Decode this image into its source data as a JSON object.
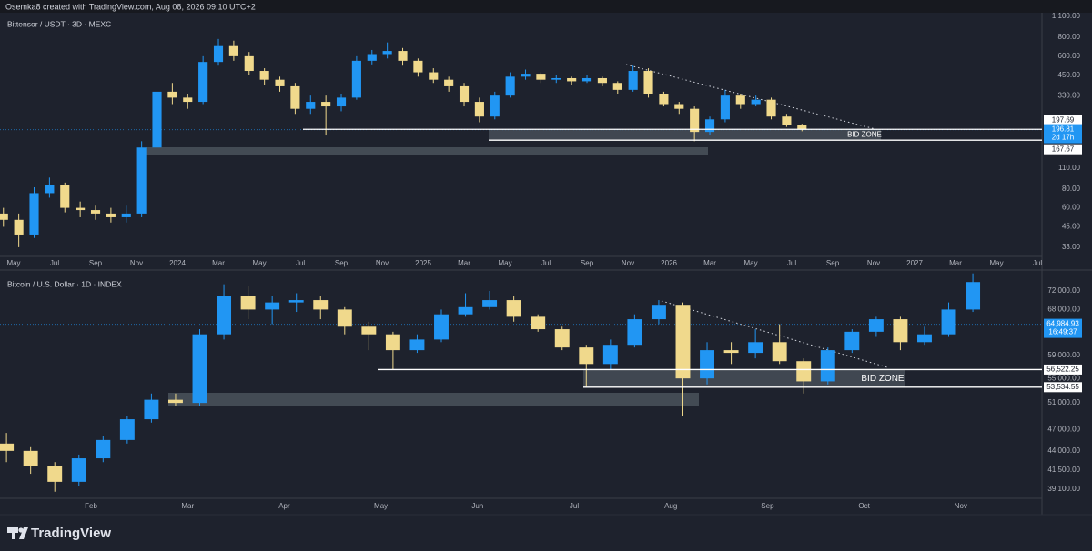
{
  "header": "Osemka8 created with TradingView.com, Aug 08, 2026 09:10 UTC+2",
  "footer": "TradingView",
  "chart_data": [
    {
      "type": "candlestick",
      "title": "Bittensor / USDT · 3D · MEXC",
      "log_y": true,
      "up_color": "#2196f3",
      "down_color": "#f0d98c",
      "xlim": [
        -0.667,
        50.22
      ],
      "ylim": [
        28.7,
        1162
      ],
      "xticks": [
        {
          "value": 0,
          "label": "May"
        },
        {
          "value": 2,
          "label": "Jul"
        },
        {
          "value": 4,
          "label": "Sep"
        },
        {
          "value": 6,
          "label": "Nov"
        },
        {
          "value": 8,
          "label": "2024"
        },
        {
          "value": 10,
          "label": "Mar"
        },
        {
          "value": 12,
          "label": "May"
        },
        {
          "value": 14,
          "label": "Jul"
        },
        {
          "value": 16,
          "label": "Sep"
        },
        {
          "value": 18,
          "label": "Nov"
        },
        {
          "value": 20,
          "label": "2025"
        },
        {
          "value": 22,
          "label": "Mar"
        },
        {
          "value": 24,
          "label": "May"
        },
        {
          "value": 26,
          "label": "Jul"
        },
        {
          "value": 28,
          "label": "Sep"
        },
        {
          "value": 30,
          "label": "Nov"
        },
        {
          "value": 32,
          "label": "2026"
        },
        {
          "value": 34,
          "label": "Mar"
        },
        {
          "value": 36,
          "label": "May"
        },
        {
          "value": 38,
          "label": "Jul"
        },
        {
          "value": 40,
          "label": "Sep"
        },
        {
          "value": 42,
          "label": "Nov"
        },
        {
          "value": 44,
          "label": "2027"
        },
        {
          "value": 46,
          "label": "Mar"
        },
        {
          "value": 48,
          "label": "May"
        },
        {
          "value": 50,
          "label": "Jul"
        }
      ],
      "yticks": [
        {
          "value": 33,
          "label": "33.00"
        },
        {
          "value": 45,
          "label": "45.00"
        },
        {
          "value": 60,
          "label": "60.00"
        },
        {
          "value": 80,
          "label": "80.00"
        },
        {
          "value": 110,
          "label": "110.00"
        },
        {
          "value": 330,
          "label": "330.00"
        },
        {
          "value": 450,
          "label": "450.00"
        },
        {
          "value": 600,
          "label": "600.00"
        },
        {
          "value": 800,
          "label": "800.00"
        },
        {
          "value": 1100,
          "label": "1,100.00"
        }
      ],
      "levels": [
        {
          "value": 197.69,
          "label": "197.69"
        },
        {
          "value": 167.67,
          "label": "167.67"
        }
      ],
      "last_price": {
        "value": 196.81,
        "label": "196.81",
        "countdown": "2d 17h"
      },
      "annotation": "BID ZONE",
      "x": [
        -0.5,
        0.25,
        1,
        1.75,
        2.5,
        3.25,
        4,
        4.75,
        5.5,
        6.25,
        7,
        7.75,
        8.5,
        9.25,
        10,
        10.75,
        11.5,
        12.25,
        13,
        13.75,
        14.5,
        15.25,
        16,
        16.75,
        17.5,
        18.25,
        19,
        19.75,
        20.5,
        21.25,
        22,
        22.75,
        23.5,
        24.25,
        25,
        25.75,
        26.5,
        27.25,
        28,
        28.75,
        29.5,
        30.25,
        31,
        31.75,
        32.5,
        33.25,
        34,
        34.75,
        35.5,
        36.25,
        37,
        37.75,
        38.5
      ],
      "ohlc": [
        [
          55,
          60,
          45,
          50
        ],
        [
          50,
          55,
          33,
          40
        ],
        [
          40,
          82,
          38,
          75
        ],
        [
          75,
          95,
          70,
          85
        ],
        [
          85,
          88,
          56,
          60
        ],
        [
          60,
          66,
          52,
          58
        ],
        [
          58,
          62,
          50,
          55
        ],
        [
          55,
          60,
          48,
          52
        ],
        [
          52,
          62,
          48,
          55
        ],
        [
          55,
          165,
          52,
          150
        ],
        [
          150,
          380,
          140,
          350
        ],
        [
          350,
          400,
          290,
          320
        ],
        [
          320,
          340,
          270,
          300
        ],
        [
          300,
          600,
          290,
          550
        ],
        [
          550,
          780,
          520,
          700
        ],
        [
          700,
          760,
          560,
          600
        ],
        [
          600,
          640,
          450,
          480
        ],
        [
          480,
          500,
          390,
          420
        ],
        [
          420,
          440,
          350,
          380
        ],
        [
          380,
          400,
          250,
          270
        ],
        [
          270,
          330,
          250,
          300
        ],
        [
          300,
          330,
          180,
          280
        ],
        [
          280,
          340,
          260,
          320
        ],
        [
          320,
          600,
          310,
          560
        ],
        [
          560,
          660,
          530,
          620
        ],
        [
          620,
          740,
          580,
          650
        ],
        [
          650,
          680,
          520,
          560
        ],
        [
          560,
          580,
          440,
          470
        ],
        [
          470,
          500,
          400,
          420
        ],
        [
          420,
          440,
          350,
          380
        ],
        [
          380,
          400,
          280,
          300
        ],
        [
          300,
          320,
          220,
          240
        ],
        [
          240,
          350,
          230,
          330
        ],
        [
          330,
          470,
          320,
          440
        ],
        [
          440,
          490,
          420,
          460
        ],
        [
          460,
          470,
          400,
          420
        ],
        [
          420,
          450,
          400,
          430
        ],
        [
          430,
          440,
          390,
          410
        ],
        [
          410,
          450,
          400,
          430
        ],
        [
          430,
          440,
          380,
          400
        ],
        [
          400,
          410,
          340,
          360
        ],
        [
          360,
          520,
          350,
          480
        ],
        [
          480,
          500,
          320,
          340
        ],
        [
          340,
          350,
          280,
          290
        ],
        [
          290,
          300,
          250,
          270
        ],
        [
          270,
          280,
          165,
          190
        ],
        [
          190,
          240,
          180,
          230
        ],
        [
          230,
          360,
          220,
          330
        ],
        [
          330,
          340,
          270,
          290
        ],
        [
          290,
          330,
          280,
          310
        ],
        [
          310,
          320,
          230,
          240
        ],
        [
          240,
          250,
          205,
          210
        ],
        [
          210,
          215,
          192,
          198
        ]
      ]
    },
    {
      "type": "candlestick",
      "title": "Bitcoin / U.S. Dollar · 1D · INDEX",
      "log_y": true,
      "up_color": "#2196f3",
      "down_color": "#f0d98c",
      "xlim": [
        0.058,
        10.84
      ],
      "ylim": [
        38020,
        76150
      ],
      "xticks": [
        {
          "value": 1,
          "label": "Feb"
        },
        {
          "value": 2,
          "label": "Mar"
        },
        {
          "value": 3,
          "label": "Apr"
        },
        {
          "value": 4,
          "label": "May"
        },
        {
          "value": 5,
          "label": "Jun"
        },
        {
          "value": 6,
          "label": "Jul"
        },
        {
          "value": 7,
          "label": "Aug"
        },
        {
          "value": 8,
          "label": "Sep"
        },
        {
          "value": 9,
          "label": "Oct"
        },
        {
          "value": 10,
          "label": "Nov"
        }
      ],
      "yticks": [
        {
          "value": 39100,
          "label": "39,100.00"
        },
        {
          "value": 41500,
          "label": "41,500.00"
        },
        {
          "value": 44000,
          "label": "44,000.00"
        },
        {
          "value": 47000,
          "label": "47,000.00"
        },
        {
          "value": 51000,
          "label": "51,000.00"
        },
        {
          "value": 55000,
          "label": "55,000.00"
        },
        {
          "value": 59000,
          "label": "59,000.00"
        },
        {
          "value": 68000,
          "label": "68,000.00"
        },
        {
          "value": 72000,
          "label": "72,000.00"
        }
      ],
      "levels": [
        {
          "value": 56522.25,
          "label": "56,522.25"
        },
        {
          "value": 53534.55,
          "label": "53,534.55"
        }
      ],
      "last_price": {
        "value": 64984.93,
        "label": "64,984.93",
        "countdown": "16:49:37"
      },
      "annotation": "BID ZONE",
      "x": [
        0.125,
        0.375,
        0.625,
        0.875,
        1.125,
        1.375,
        1.625,
        1.875,
        2.125,
        2.375,
        2.625,
        2.875,
        3.125,
        3.375,
        3.625,
        3.875,
        4.125,
        4.375,
        4.625,
        4.875,
        5.125,
        5.375,
        5.625,
        5.875,
        6.125,
        6.375,
        6.625,
        6.875,
        7.125,
        7.375,
        7.625,
        7.875,
        8.125,
        8.375,
        8.625,
        8.875,
        9.125,
        9.375,
        9.625,
        9.875,
        10.125
      ],
      "ohlc": [
        [
          45000,
          46500,
          42500,
          44000
        ],
        [
          44000,
          44500,
          41000,
          42000
        ],
        [
          42000,
          42500,
          38800,
          40000
        ],
        [
          40000,
          43500,
          39500,
          43000
        ],
        [
          43000,
          46000,
          42500,
          45500
        ],
        [
          45500,
          49000,
          45000,
          48500
        ],
        [
          48500,
          52500,
          48000,
          51500
        ],
        [
          51500,
          52500,
          50500,
          51000
        ],
        [
          51000,
          64000,
          50500,
          63000
        ],
        [
          63000,
          73500,
          62000,
          71000
        ],
        [
          71000,
          73000,
          66000,
          68000
        ],
        [
          68000,
          71000,
          65000,
          69500
        ],
        [
          69500,
          71500,
          67500,
          70000
        ],
        [
          70000,
          71000,
          66000,
          68000
        ],
        [
          68000,
          68500,
          63000,
          64500
        ],
        [
          64500,
          65500,
          60000,
          63000
        ],
        [
          63000,
          63500,
          56500,
          60000
        ],
        [
          60000,
          63000,
          59500,
          62000
        ],
        [
          62000,
          68000,
          61500,
          67000
        ],
        [
          67000,
          71500,
          66500,
          68500
        ],
        [
          68500,
          72000,
          68000,
          70000
        ],
        [
          70000,
          71000,
          65500,
          66500
        ],
        [
          66500,
          67000,
          63500,
          64000
        ],
        [
          64000,
          64500,
          60000,
          60500
        ],
        [
          60500,
          61000,
          53500,
          57500
        ],
        [
          57500,
          62000,
          56500,
          61000
        ],
        [
          61000,
          67000,
          60500,
          66000
        ],
        [
          66000,
          70000,
          65000,
          69000
        ],
        [
          69000,
          69500,
          49000,
          55000
        ],
        [
          55000,
          61500,
          54000,
          60000
        ],
        [
          60000,
          61500,
          57500,
          59500
        ],
        [
          59500,
          64000,
          58500,
          61500
        ],
        [
          61500,
          65000,
          57500,
          58000
        ],
        [
          58000,
          58500,
          52500,
          54500
        ],
        [
          54500,
          60500,
          54000,
          60000
        ],
        [
          60000,
          64000,
          59500,
          63500
        ],
        [
          63500,
          66500,
          62500,
          66000
        ],
        [
          66000,
          66500,
          60000,
          61500
        ],
        [
          61500,
          64500,
          61000,
          63000
        ],
        [
          63000,
          69500,
          62500,
          68000
        ],
        [
          68000,
          76000,
          67500,
          74000
        ]
      ]
    }
  ]
}
